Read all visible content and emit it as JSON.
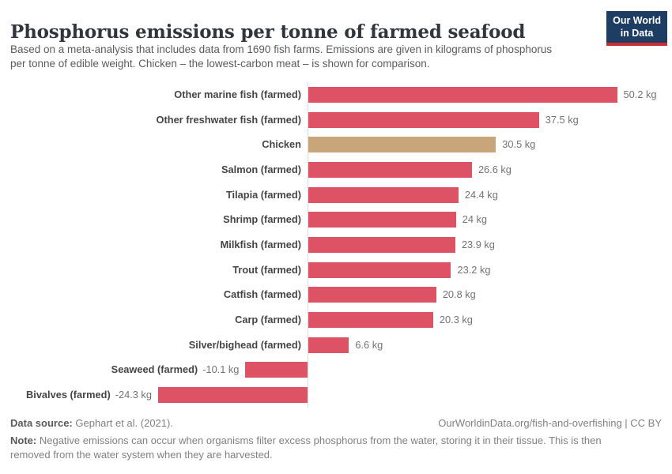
{
  "header": {
    "title": "Phosphorus emissions per tonne of farmed seafood",
    "subtitle": "Based on a meta-analysis that includes data from 1690 fish farms. Emissions are given in kilograms of phosphorus per tonne of edible weight. Chicken – the lowest-carbon meat – is shown for comparison.",
    "logo": {
      "line1": "Our World",
      "line2": "in Data"
    }
  },
  "chart_data": {
    "type": "bar",
    "orientation": "horizontal",
    "title": "Phosphorus emissions per tonne of farmed seafood",
    "unit": "kg",
    "categories": [
      "Other marine fish (farmed)",
      "Other freshwater fish (farmed)",
      "Chicken",
      "Salmon (farmed)",
      "Tilapia (farmed)",
      "Shrimp (farmed)",
      "Milkfish (farmed)",
      "Trout (farmed)",
      "Catfish (farmed)",
      "Carp (farmed)",
      "Silver/bighead (farmed)",
      "Seaweed (farmed)",
      "Bivalves (farmed)"
    ],
    "values": [
      50.2,
      37.5,
      30.5,
      26.6,
      24.4,
      24,
      23.9,
      23.2,
      20.8,
      20.3,
      6.6,
      -10.1,
      -24.3
    ],
    "value_labels": [
      "50.2 kg",
      "37.5 kg",
      "30.5 kg",
      "26.6 kg",
      "24.4 kg",
      "24 kg",
      "23.9 kg",
      "23.2 kg",
      "20.8 kg",
      "20.3 kg",
      "6.6 kg",
      "-10.1 kg",
      "-24.3 kg"
    ],
    "xlim": [
      -24.3,
      50.2
    ],
    "grid": false,
    "legend": "none",
    "bar_color": "#dd5264",
    "highlight": {
      "category": "Chicken",
      "index": 2,
      "color": "#c8a679"
    },
    "axis_line_color": "#dcdcdc"
  },
  "footer": {
    "datasource_label": "Data source:",
    "datasource_value": "Gephart et al. (2021).",
    "credit": "OurWorldinData.org/fish-and-overfishing | CC BY",
    "note_label": "Note:",
    "note_text": "Negative emissions can occur when organisms filter excess phosphorus from the water, storing it in their tissue. This is then removed from the water system when they are harvested."
  }
}
